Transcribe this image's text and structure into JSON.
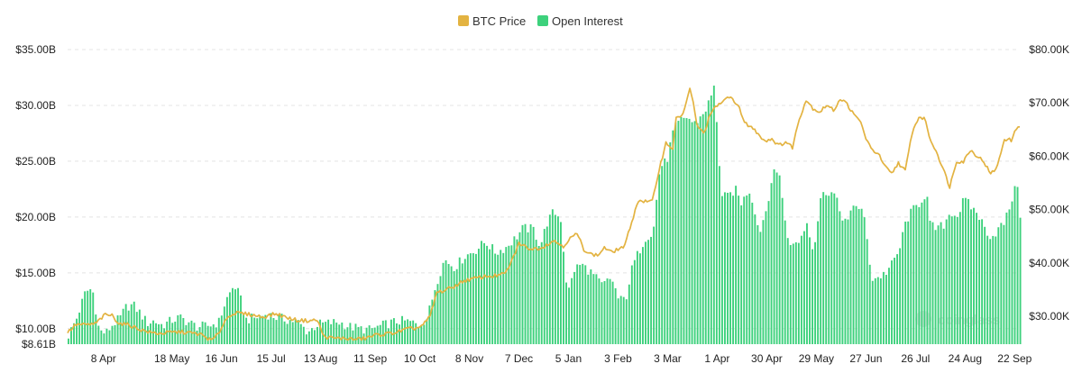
{
  "chart_data": {
    "type": "bar",
    "title": "",
    "legend": {
      "placement": "top-center",
      "items": [
        {
          "name": "BTC Price",
          "color": "#e3b341"
        },
        {
          "name": "Open Interest",
          "color": "#3dd17c"
        }
      ]
    },
    "watermark": "coinglass",
    "grid": true,
    "left_axis": {
      "ticks": [
        {
          "label": "$35.00B",
          "value": 35.0
        },
        {
          "label": "$30.00B",
          "value": 30.0
        },
        {
          "label": "$25.00B",
          "value": 25.0
        },
        {
          "label": "$20.00B",
          "value": 20.0
        },
        {
          "label": "$15.00B",
          "value": 15.0
        },
        {
          "label": "$10.00B",
          "value": 10.0
        },
        {
          "label": "$8.61B",
          "value": 8.61
        }
      ],
      "ylim": [
        8.61,
        35.0
      ]
    },
    "right_axis": {
      "ticks": [
        {
          "label": "$80.00K",
          "value": 80
        },
        {
          "label": "$70.00K",
          "value": 70
        },
        {
          "label": "$60.00K",
          "value": 60
        },
        {
          "label": "$50.00K",
          "value": 50
        },
        {
          "label": "$40.00K",
          "value": 40
        },
        {
          "label": "$30.00K",
          "value": 30
        }
      ],
      "ylim": [
        24.8,
        80.0
      ]
    },
    "x_axis": {
      "ticks": [
        {
          "label": "8 Apr",
          "day": 21
        },
        {
          "label": "18 May",
          "day": 61
        },
        {
          "label": "16 Jun",
          "day": 90
        },
        {
          "label": "15 Jul",
          "day": 119
        },
        {
          "label": "13 Aug",
          "day": 148
        },
        {
          "label": "11 Sep",
          "day": 177
        },
        {
          "label": "10 Oct",
          "day": 206
        },
        {
          "label": "8 Nov",
          "day": 235
        },
        {
          "label": "7 Dec",
          "day": 264
        },
        {
          "label": "5 Jan",
          "day": 293
        },
        {
          "label": "3 Feb",
          "day": 322
        },
        {
          "label": "3 Mar",
          "day": 351
        },
        {
          "label": "1 Apr",
          "day": 380
        },
        {
          "label": "30 Apr",
          "day": 409
        },
        {
          "label": "29 May",
          "day": 438
        },
        {
          "label": "27 Jun",
          "day": 467
        },
        {
          "label": "26 Jul",
          "day": 496
        },
        {
          "label": "24 Aug",
          "day": 525
        },
        {
          "label": "22 Sep",
          "day": 554
        }
      ],
      "range_days": [
        0,
        557
      ]
    },
    "series": [
      {
        "name": "Open Interest",
        "axis": "left",
        "kind": "bar",
        "unit": "B USD",
        "anchors": [
          [
            0,
            9.4
          ],
          [
            5,
            11.0
          ],
          [
            10,
            13.3
          ],
          [
            14,
            13.6
          ],
          [
            18,
            9.8
          ],
          [
            22,
            9.6
          ],
          [
            26,
            10.4
          ],
          [
            30,
            10.9
          ],
          [
            34,
            12.0
          ],
          [
            38,
            12.1
          ],
          [
            42,
            11.4
          ],
          [
            46,
            10.5
          ],
          [
            50,
            10.7
          ],
          [
            55,
            10.3
          ],
          [
            60,
            10.7
          ],
          [
            65,
            11.0
          ],
          [
            70,
            10.6
          ],
          [
            75,
            10.2
          ],
          [
            80,
            10.2
          ],
          [
            85,
            10.4
          ],
          [
            88,
            10.6
          ],
          [
            92,
            12.5
          ],
          [
            97,
            13.9
          ],
          [
            100,
            13.0
          ],
          [
            104,
            10.8
          ],
          [
            110,
            11.0
          ],
          [
            116,
            11.3
          ],
          [
            122,
            11.0
          ],
          [
            128,
            10.8
          ],
          [
            134,
            10.6
          ],
          [
            140,
            9.7
          ],
          [
            146,
            10.4
          ],
          [
            152,
            10.5
          ],
          [
            158,
            10.6
          ],
          [
            164,
            10.2
          ],
          [
            170,
            10.0
          ],
          [
            176,
            9.9
          ],
          [
            182,
            10.2
          ],
          [
            188,
            10.5
          ],
          [
            194,
            10.7
          ],
          [
            200,
            10.6
          ],
          [
            205,
            10.3
          ],
          [
            210,
            11.0
          ],
          [
            215,
            14.0
          ],
          [
            220,
            16.2
          ],
          [
            226,
            15.5
          ],
          [
            232,
            16.5
          ],
          [
            238,
            17.0
          ],
          [
            244,
            17.8
          ],
          [
            250,
            16.8
          ],
          [
            256,
            17.3
          ],
          [
            262,
            18.2
          ],
          [
            266,
            19.0
          ],
          [
            272,
            18.9
          ],
          [
            276,
            17.4
          ],
          [
            280,
            19.5
          ],
          [
            284,
            20.5
          ],
          [
            288,
            19.8
          ],
          [
            292,
            13.0
          ],
          [
            296,
            15.3
          ],
          [
            300,
            15.8
          ],
          [
            306,
            15.0
          ],
          [
            312,
            13.9
          ],
          [
            318,
            14.5
          ],
          [
            322,
            12.5
          ],
          [
            326,
            12.7
          ],
          [
            330,
            15.6
          ],
          [
            334,
            17.0
          ],
          [
            338,
            18.3
          ],
          [
            342,
            18.5
          ],
          [
            346,
            24.5
          ],
          [
            350,
            25.0
          ],
          [
            354,
            27.8
          ],
          [
            358,
            28.6
          ],
          [
            362,
            29.0
          ],
          [
            366,
            28.3
          ],
          [
            370,
            29.0
          ],
          [
            374,
            30.0
          ],
          [
            378,
            31.7
          ],
          [
            382,
            21.8
          ],
          [
            386,
            21.8
          ],
          [
            390,
            22.5
          ],
          [
            394,
            21.2
          ],
          [
            398,
            22.6
          ],
          [
            402,
            20.4
          ],
          [
            404,
            18.5
          ],
          [
            408,
            20.6
          ],
          [
            412,
            23.8
          ],
          [
            416,
            24.0
          ],
          [
            420,
            18.4
          ],
          [
            424,
            17.4
          ],
          [
            428,
            18.0
          ],
          [
            432,
            19.5
          ],
          [
            436,
            17.0
          ],
          [
            440,
            21.7
          ],
          [
            444,
            22.4
          ],
          [
            448,
            22.0
          ],
          [
            452,
            20.2
          ],
          [
            456,
            19.5
          ],
          [
            460,
            21.3
          ],
          [
            464,
            20.6
          ],
          [
            466,
            19.4
          ],
          [
            470,
            14.5
          ],
          [
            474,
            14.6
          ],
          [
            478,
            15.0
          ],
          [
            482,
            15.8
          ],
          [
            486,
            17.0
          ],
          [
            490,
            19.7
          ],
          [
            494,
            20.6
          ],
          [
            498,
            21.3
          ],
          [
            502,
            22.2
          ],
          [
            504,
            19.3
          ],
          [
            508,
            18.9
          ],
          [
            512,
            19.3
          ],
          [
            516,
            20.5
          ],
          [
            520,
            20.1
          ],
          [
            524,
            21.6
          ],
          [
            528,
            20.9
          ],
          [
            532,
            20.3
          ],
          [
            536,
            19.0
          ],
          [
            540,
            18.2
          ],
          [
            544,
            18.9
          ],
          [
            548,
            19.6
          ],
          [
            552,
            21.7
          ],
          [
            556,
            23.3
          ],
          [
            557,
            19.5
          ]
        ]
      },
      {
        "name": "BTC Price",
        "axis": "right",
        "kind": "line",
        "unit": "K USD",
        "anchors": [
          [
            0,
            27.0
          ],
          [
            5,
            28.5
          ],
          [
            10,
            28.4
          ],
          [
            16,
            28.6
          ],
          [
            22,
            30.3
          ],
          [
            26,
            30.2
          ],
          [
            30,
            28.7
          ],
          [
            36,
            28.4
          ],
          [
            42,
            27.6
          ],
          [
            48,
            27.0
          ],
          [
            54,
            26.8
          ],
          [
            60,
            27.0
          ],
          [
            66,
            27.1
          ],
          [
            72,
            26.9
          ],
          [
            78,
            26.6
          ],
          [
            84,
            25.5
          ],
          [
            88,
            26.6
          ],
          [
            92,
            29.2
          ],
          [
            96,
            30.5
          ],
          [
            100,
            30.6
          ],
          [
            106,
            30.4
          ],
          [
            114,
            29.9
          ],
          [
            122,
            30.5
          ],
          [
            128,
            29.8
          ],
          [
            134,
            29.3
          ],
          [
            140,
            29.2
          ],
          [
            146,
            29.3
          ],
          [
            150,
            26.2
          ],
          [
            156,
            25.9
          ],
          [
            162,
            25.9
          ],
          [
            168,
            25.7
          ],
          [
            174,
            25.9
          ],
          [
            180,
            26.5
          ],
          [
            186,
            26.7
          ],
          [
            192,
            27.0
          ],
          [
            198,
            27.6
          ],
          [
            204,
            27.8
          ],
          [
            208,
            28.4
          ],
          [
            212,
            30.0
          ],
          [
            216,
            34.5
          ],
          [
            220,
            34.8
          ],
          [
            226,
            35.6
          ],
          [
            232,
            36.7
          ],
          [
            238,
            37.1
          ],
          [
            244,
            37.5
          ],
          [
            250,
            37.6
          ],
          [
            256,
            38.0
          ],
          [
            260,
            40.5
          ],
          [
            264,
            43.7
          ],
          [
            268,
            43.0
          ],
          [
            272,
            42.6
          ],
          [
            278,
            43.0
          ],
          [
            284,
            44.2
          ],
          [
            290,
            43.2
          ],
          [
            294,
            44.6
          ],
          [
            298,
            45.5
          ],
          [
            302,
            42.6
          ],
          [
            306,
            41.7
          ],
          [
            310,
            41.4
          ],
          [
            314,
            42.9
          ],
          [
            318,
            42.0
          ],
          [
            322,
            42.6
          ],
          [
            326,
            43.2
          ],
          [
            330,
            47.8
          ],
          [
            334,
            51.8
          ],
          [
            338,
            51.5
          ],
          [
            342,
            51.5
          ],
          [
            346,
            57.5
          ],
          [
            350,
            62.5
          ],
          [
            354,
            61.5
          ],
          [
            356,
            67.0
          ],
          [
            360,
            68.0
          ],
          [
            364,
            72.5
          ],
          [
            366,
            70.0
          ],
          [
            368,
            66.0
          ],
          [
            372,
            64.2
          ],
          [
            376,
            67.9
          ],
          [
            380,
            69.5
          ],
          [
            384,
            70.5
          ],
          [
            388,
            71.0
          ],
          [
            392,
            69.8
          ],
          [
            396,
            66.2
          ],
          [
            400,
            65.5
          ],
          [
            404,
            64.2
          ],
          [
            408,
            62.9
          ],
          [
            412,
            63.3
          ],
          [
            416,
            62.0
          ],
          [
            420,
            62.7
          ],
          [
            424,
            61.7
          ],
          [
            428,
            67.0
          ],
          [
            432,
            70.6
          ],
          [
            436,
            69.0
          ],
          [
            440,
            68.3
          ],
          [
            444,
            69.6
          ],
          [
            448,
            68.6
          ],
          [
            452,
            70.8
          ],
          [
            456,
            69.8
          ],
          [
            460,
            67.7
          ],
          [
            464,
            66.5
          ],
          [
            466,
            64.2
          ],
          [
            470,
            61.3
          ],
          [
            474,
            60.6
          ],
          [
            478,
            58.1
          ],
          [
            482,
            56.7
          ],
          [
            486,
            58.8
          ],
          [
            490,
            57.2
          ],
          [
            494,
            64.4
          ],
          [
            498,
            67.4
          ],
          [
            502,
            66.8
          ],
          [
            504,
            63.5
          ],
          [
            508,
            61.1
          ],
          [
            512,
            57.8
          ],
          [
            516,
            54.3
          ],
          [
            520,
            59.1
          ],
          [
            524,
            59.0
          ],
          [
            528,
            61.2
          ],
          [
            532,
            60.1
          ],
          [
            536,
            59.0
          ],
          [
            540,
            56.6
          ],
          [
            544,
            58.2
          ],
          [
            548,
            63.3
          ],
          [
            552,
            63.0
          ],
          [
            556,
            65.8
          ],
          [
            557,
            65.8
          ]
        ]
      }
    ]
  }
}
